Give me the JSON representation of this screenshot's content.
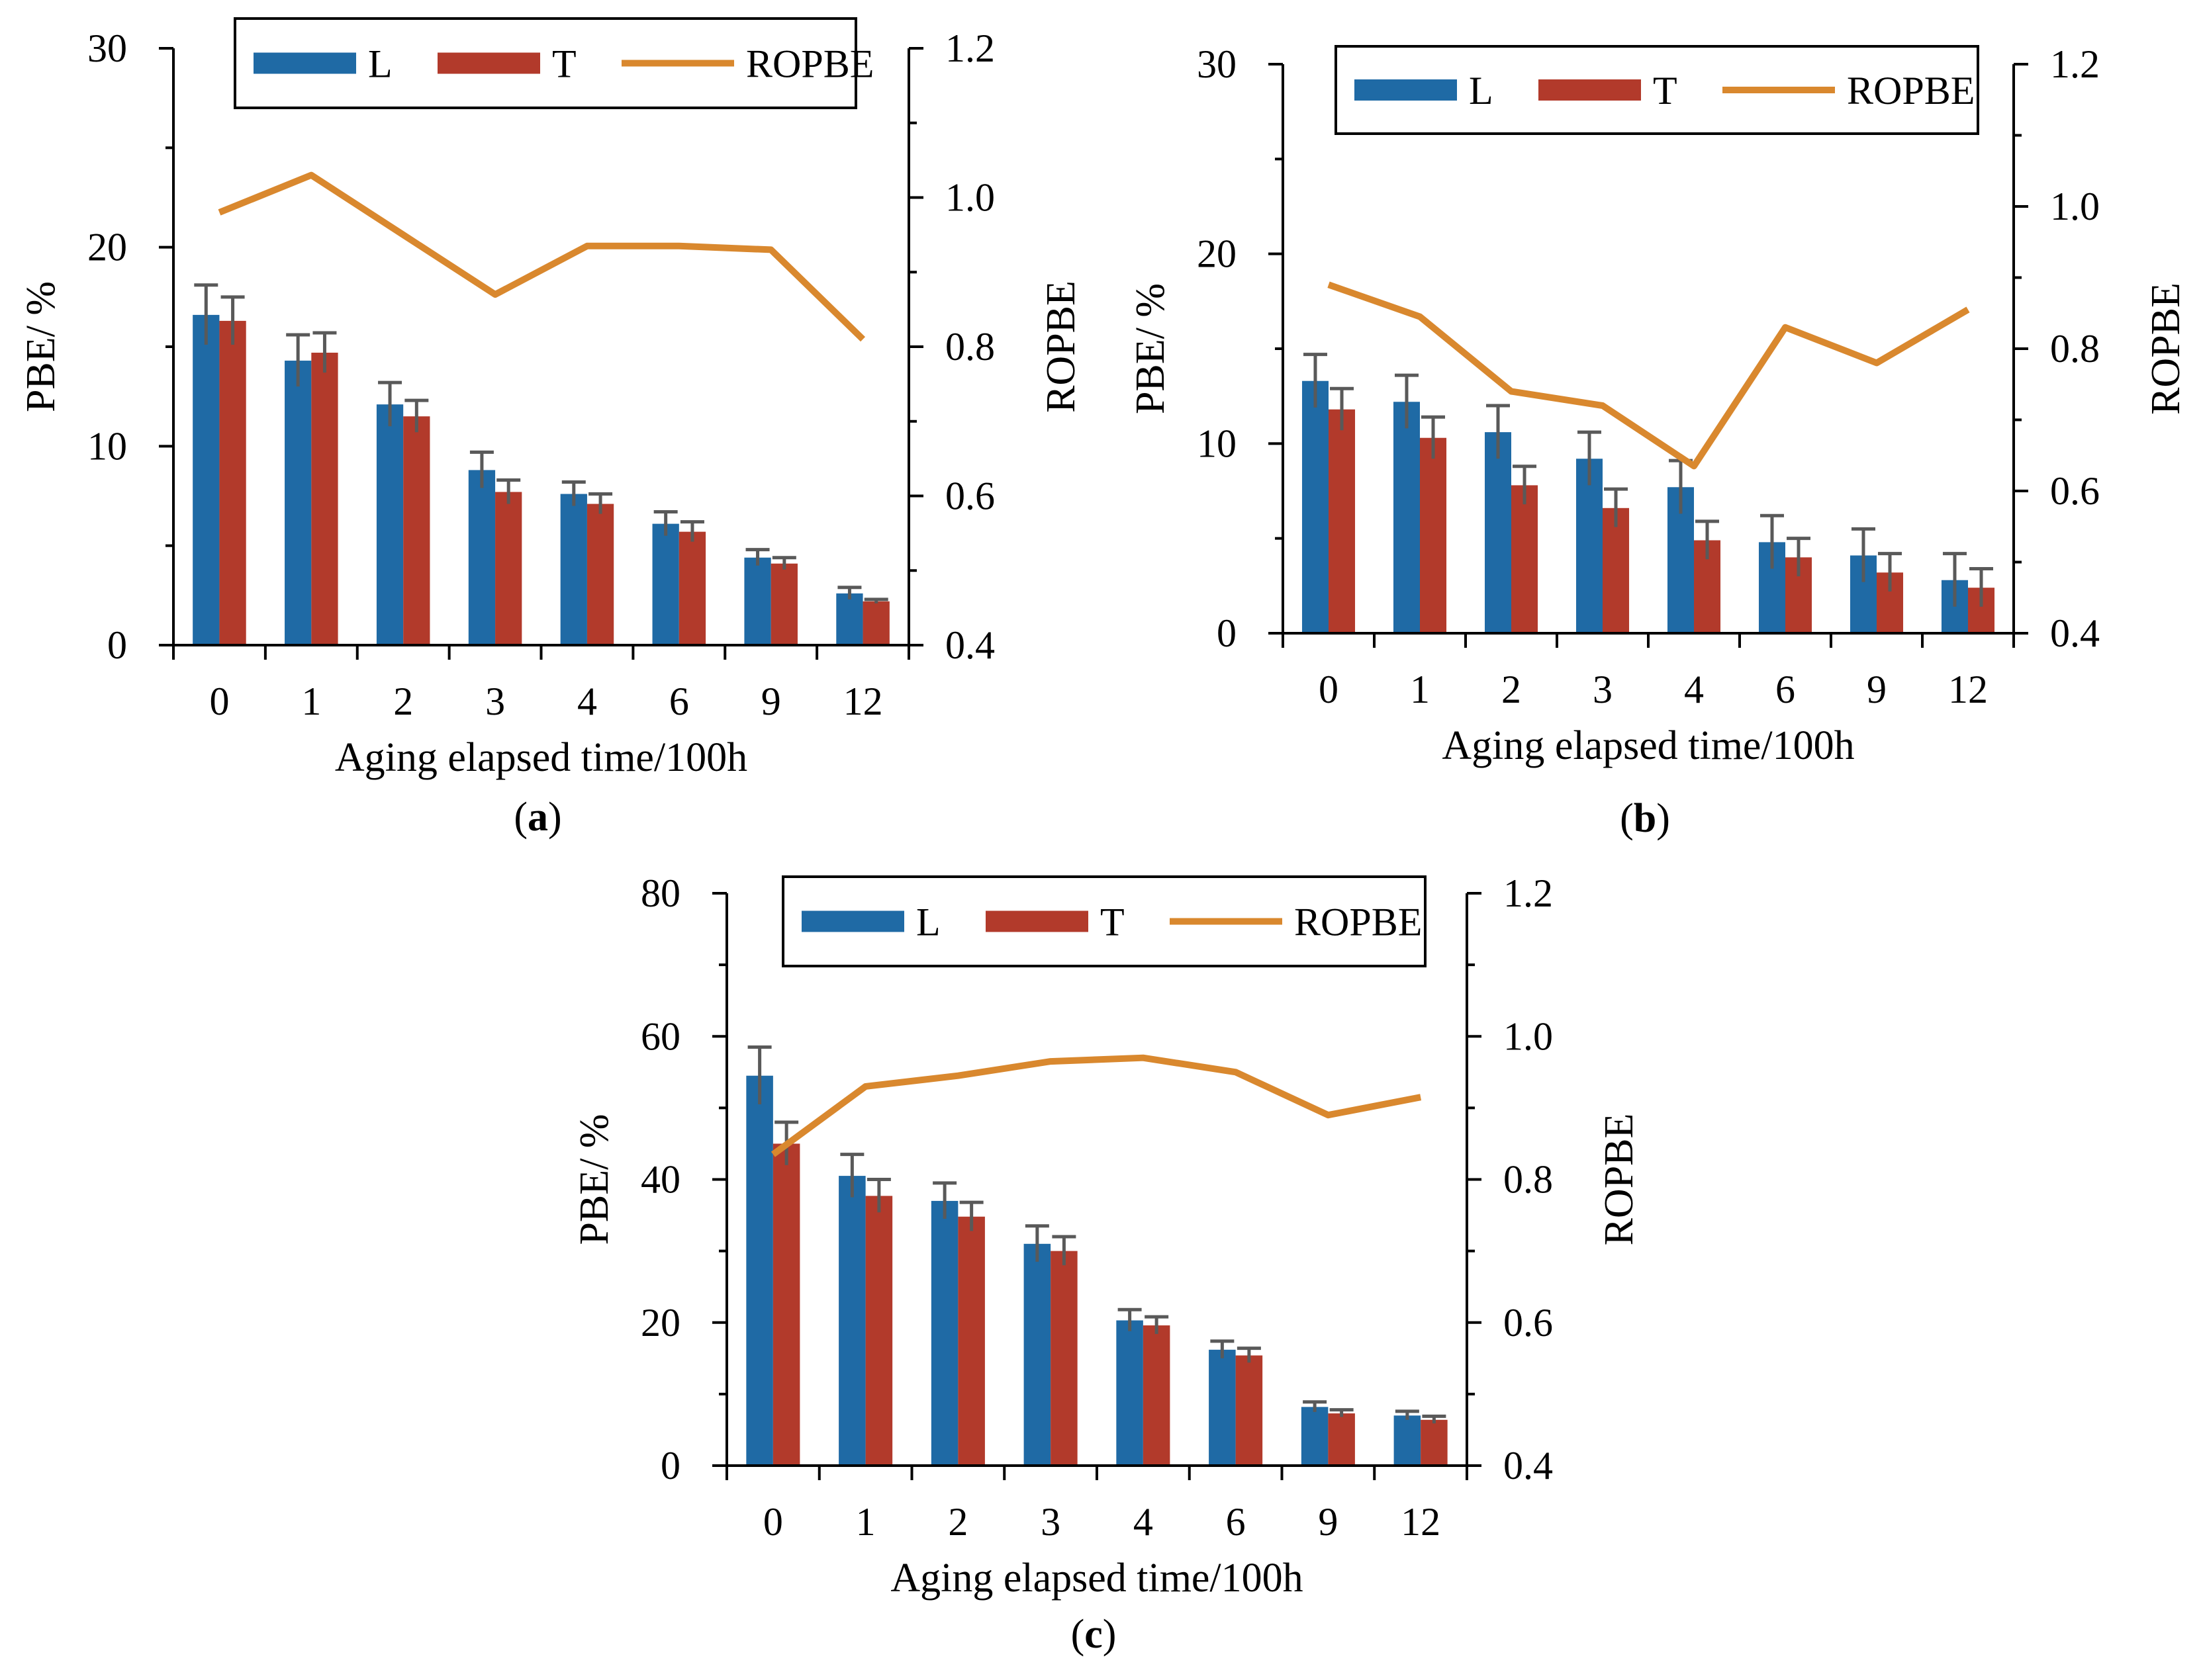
{
  "colors": {
    "L": "#1f6aa5",
    "T": "#b23a2b",
    "ROPBE": "#d9882e",
    "error": "#595959",
    "axis": "#000000"
  },
  "chart_data": [
    {
      "id": "a",
      "type": "bar+line",
      "panel_label": "a",
      "categories": [
        "0",
        "1",
        "2",
        "3",
        "4",
        "6",
        "9",
        "12"
      ],
      "xlabel": "Aging elapsed time/100h",
      "ylabel_left": "PBE/ %",
      "ylabel_right": "ROPBE",
      "ylim_left": [
        0,
        30
      ],
      "yticks_left": [
        "0",
        "10",
        "20",
        "30"
      ],
      "ylim_right": [
        0.4,
        1.2
      ],
      "yticks_right": [
        "0.4",
        "0.6",
        "0.8",
        "1.0",
        "1.2"
      ],
      "legend": [
        "L",
        "T",
        "ROPBE"
      ],
      "series": [
        {
          "name": "L",
          "kind": "bar",
          "values": [
            16.6,
            14.3,
            12.1,
            8.8,
            7.6,
            6.1,
            4.4,
            2.6
          ],
          "errors": [
            1.5,
            1.3,
            1.1,
            0.9,
            0.6,
            0.6,
            0.4,
            0.3
          ]
        },
        {
          "name": "T",
          "kind": "bar",
          "values": [
            16.3,
            14.7,
            11.5,
            7.7,
            7.1,
            5.7,
            4.1,
            2.2
          ],
          "errors": [
            1.2,
            1.0,
            0.8,
            0.6,
            0.5,
            0.5,
            0.3,
            0.1
          ]
        },
        {
          "name": "ROPBE",
          "kind": "line",
          "axis": "right",
          "values": [
            0.98,
            1.03,
            0.95,
            0.87,
            0.935,
            0.935,
            0.93,
            0.81
          ]
        }
      ]
    },
    {
      "id": "b",
      "type": "bar+line",
      "panel_label": "b",
      "categories": [
        "0",
        "1",
        "2",
        "3",
        "4",
        "6",
        "9",
        "12"
      ],
      "xlabel": "Aging elapsed time/100h",
      "ylabel_left": "PBE/ %",
      "ylabel_right": "ROPBE",
      "ylim_left": [
        0,
        30
      ],
      "yticks_left": [
        "0",
        "10",
        "20",
        "30"
      ],
      "ylim_right": [
        0.4,
        1.2
      ],
      "yticks_right": [
        "0.4",
        "0.6",
        "0.8",
        "1.0",
        "1.2"
      ],
      "legend": [
        "L",
        "T",
        "ROPBE"
      ],
      "series": [
        {
          "name": "L",
          "kind": "bar",
          "values": [
            13.3,
            12.2,
            10.6,
            9.2,
            7.7,
            4.8,
            4.1,
            2.8
          ],
          "errors": [
            1.4,
            1.4,
            1.4,
            1.4,
            1.4,
            1.4,
            1.4,
            1.4
          ]
        },
        {
          "name": "T",
          "kind": "bar",
          "values": [
            11.8,
            10.3,
            7.8,
            6.6,
            4.9,
            4.0,
            3.2,
            2.4
          ],
          "errors": [
            1.1,
            1.1,
            1.0,
            1.0,
            1.0,
            1.0,
            1.0,
            1.0
          ]
        },
        {
          "name": "ROPBE",
          "kind": "line",
          "axis": "right",
          "values": [
            0.89,
            0.845,
            0.74,
            0.72,
            0.635,
            0.83,
            0.78,
            0.855
          ]
        }
      ]
    },
    {
      "id": "c",
      "type": "bar+line",
      "panel_label": "c",
      "categories": [
        "0",
        "1",
        "2",
        "3",
        "4",
        "6",
        "9",
        "12"
      ],
      "xlabel": "Aging elapsed time/100h",
      "ylabel_left": "PBE/ %",
      "ylabel_right": "ROPBE",
      "ylim_left": [
        0,
        80
      ],
      "yticks_left": [
        "0",
        "20",
        "40",
        "60",
        "80"
      ],
      "ylim_right": [
        0.4,
        1.2
      ],
      "yticks_right": [
        "0.4",
        "0.6",
        "0.8",
        "1.0",
        "1.2"
      ],
      "legend": [
        "L",
        "T",
        "ROPBE"
      ],
      "series": [
        {
          "name": "L",
          "kind": "bar",
          "values": [
            54.5,
            40.5,
            37.0,
            31.0,
            20.3,
            16.2,
            8.2,
            7.0
          ],
          "errors": [
            4.0,
            3.0,
            2.5,
            2.5,
            1.5,
            1.2,
            0.7,
            0.6
          ]
        },
        {
          "name": "T",
          "kind": "bar",
          "values": [
            45.0,
            37.7,
            34.8,
            30.0,
            19.6,
            15.4,
            7.3,
            6.4
          ],
          "errors": [
            3.0,
            2.3,
            2.0,
            2.0,
            1.2,
            1.0,
            0.5,
            0.5
          ]
        },
        {
          "name": "ROPBE",
          "kind": "line",
          "axis": "right",
          "values": [
            0.835,
            0.93,
            0.945,
            0.965,
            0.97,
            0.95,
            0.89,
            0.915
          ]
        }
      ]
    }
  ]
}
